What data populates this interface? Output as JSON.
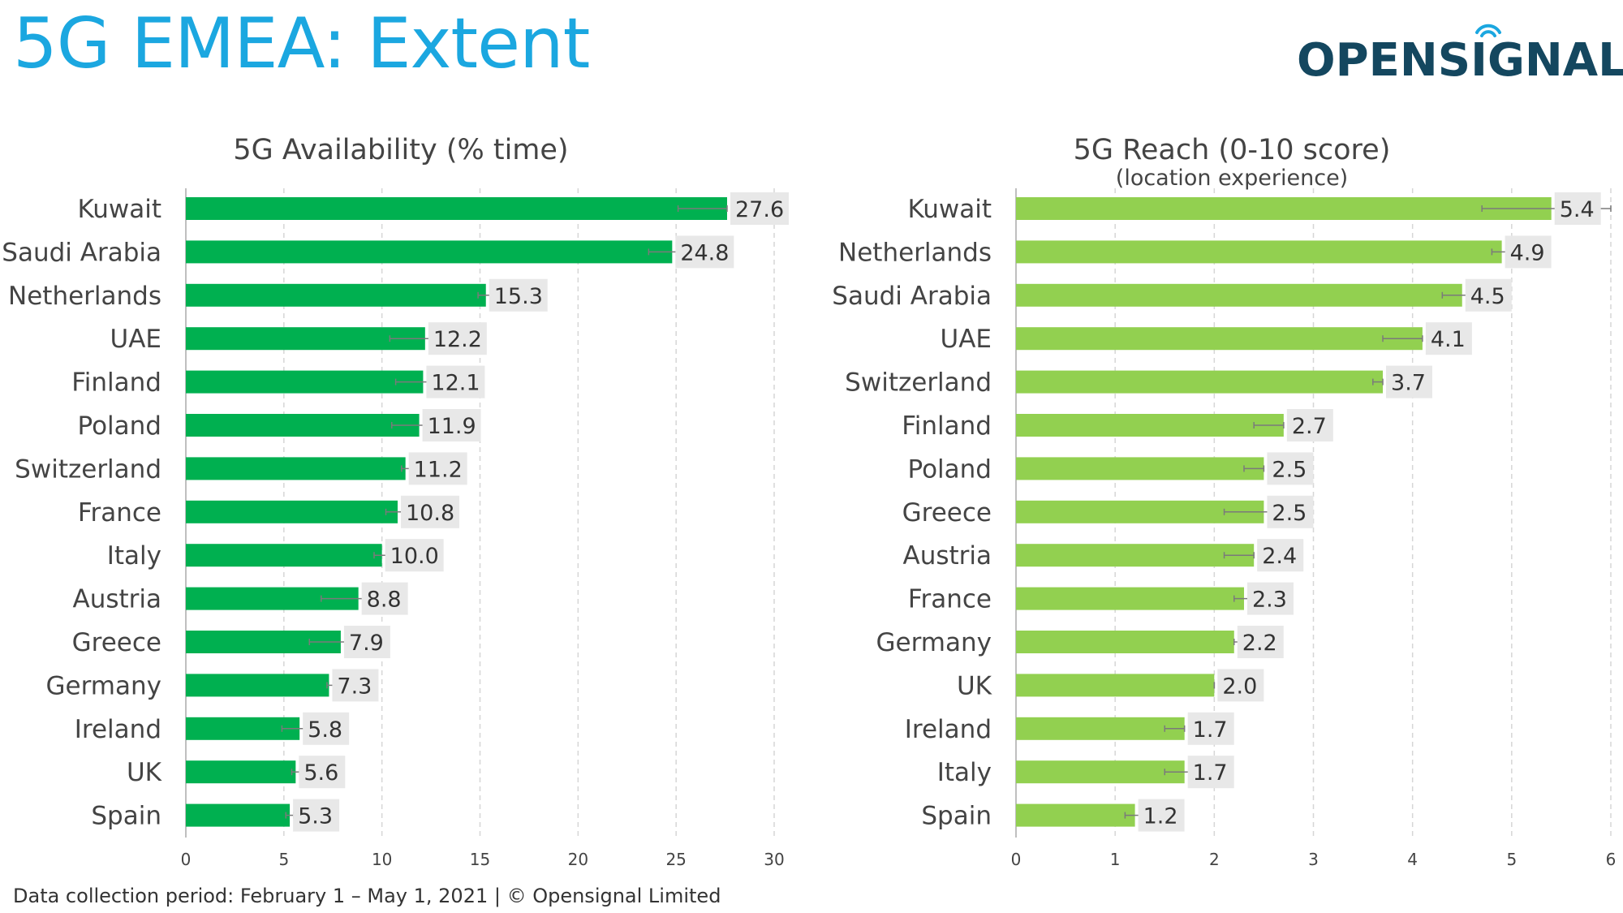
{
  "page": {
    "title": "5G EMEA: Extent",
    "logo_text": "OPENSIGNAL",
    "footer": "Data collection period: February 1 – May 1, 2021  |  © Opensignal Limited"
  },
  "colors": {
    "title": "#1ba7e0",
    "logo": "#14475f",
    "availability_bar": "#00b050",
    "reach_bar": "#92d050",
    "label_bg": "#e8e8e8"
  },
  "chart_data": [
    {
      "type": "bar",
      "orientation": "horizontal",
      "title": "5G Availability (% time)",
      "subtitle": "",
      "categories": [
        "Kuwait",
        "Saudi Arabia",
        "Netherlands",
        "UAE",
        "Finland",
        "Poland",
        "Switzerland",
        "France",
        "Italy",
        "Austria",
        "Greece",
        "Germany",
        "Ireland",
        "UK",
        "Spain"
      ],
      "values": [
        27.6,
        24.8,
        15.3,
        12.2,
        12.1,
        11.9,
        11.2,
        10.8,
        10.0,
        8.8,
        7.9,
        7.3,
        5.8,
        5.6,
        5.3
      ],
      "value_labels": [
        "27.6",
        "24.8",
        "15.3",
        "12.2",
        "12.1",
        "11.9",
        "11.2",
        "10.8",
        "10.0",
        "8.8",
        "7.9",
        "7.3",
        "5.8",
        "5.6",
        "5.3"
      ],
      "error_low": [
        25.1,
        23.6,
        14.9,
        10.4,
        10.7,
        10.5,
        11.0,
        10.2,
        9.6,
        6.9,
        6.3,
        7.2,
        4.9,
        5.4,
        5.1
      ],
      "error_high": [
        27.6,
        25.4,
        15.6,
        12.7,
        12.5,
        12.3,
        11.5,
        11.0,
        10.3,
        9.4,
        8.1,
        7.5,
        6.3,
        5.8,
        5.5
      ],
      "xlim": [
        0,
        30
      ],
      "xticks": [
        0,
        5,
        10,
        15,
        20,
        25,
        30
      ],
      "xlabel": "",
      "ylabel": "",
      "grid": "vertical dashed",
      "legend": "none"
    },
    {
      "type": "bar",
      "orientation": "horizontal",
      "title": "5G Reach (0-10 score)",
      "subtitle": "(location experience)",
      "categories": [
        "Kuwait",
        "Netherlands",
        "Saudi Arabia",
        "UAE",
        "Switzerland",
        "Finland",
        "Poland",
        "Greece",
        "Austria",
        "France",
        "Germany",
        "UK",
        "Ireland",
        "Italy",
        "Spain"
      ],
      "values": [
        5.4,
        4.9,
        4.5,
        4.1,
        3.7,
        2.7,
        2.5,
        2.5,
        2.4,
        2.3,
        2.2,
        2.0,
        1.7,
        1.7,
        1.2
      ],
      "value_labels": [
        "5.4",
        "4.9",
        "4.5",
        "4.1",
        "3.7",
        "2.7",
        "2.5",
        "2.5",
        "2.4",
        "2.3",
        "2.2",
        "2.0",
        "1.7",
        "1.7",
        "1.2"
      ],
      "error_low": [
        4.7,
        4.8,
        4.3,
        3.7,
        3.6,
        2.4,
        2.3,
        2.1,
        2.1,
        2.2,
        2.2,
        2.0,
        1.5,
        1.5,
        1.1
      ],
      "error_high": [
        6.0,
        5.0,
        4.6,
        4.1,
        3.7,
        2.7,
        2.5,
        2.6,
        2.4,
        2.4,
        2.3,
        2.0,
        1.7,
        1.8,
        1.3
      ],
      "xlim": [
        0,
        6
      ],
      "xticks": [
        0,
        1,
        2,
        3,
        4,
        5,
        6
      ],
      "xlabel": "",
      "ylabel": "",
      "grid": "vertical dashed",
      "legend": "none"
    }
  ]
}
